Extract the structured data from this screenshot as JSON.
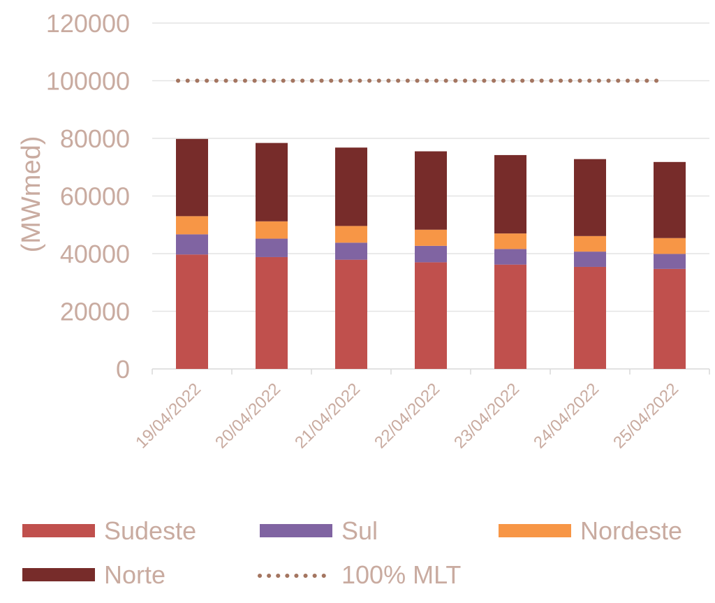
{
  "chart_data": {
    "type": "bar",
    "stacked": true,
    "categories": [
      "19/04/2022",
      "20/04/2022",
      "21/04/2022",
      "22/04/2022",
      "23/04/2022",
      "24/04/2022",
      "25/04/2022"
    ],
    "series": [
      {
        "name": "Sudeste",
        "color": "#c0504d",
        "values": [
          39700,
          38800,
          37900,
          37000,
          36200,
          35400,
          34700
        ]
      },
      {
        "name": "Sul",
        "color": "#8064a2",
        "values": [
          7000,
          6400,
          5900,
          5700,
          5400,
          5300,
          5200
        ]
      },
      {
        "name": "Nordeste",
        "color": "#f79646",
        "values": [
          6300,
          6000,
          5800,
          5600,
          5400,
          5400,
          5500
        ]
      },
      {
        "name": "Norte",
        "color": "#772c2a",
        "values": [
          26800,
          27200,
          27200,
          27200,
          27200,
          26700,
          26400
        ]
      }
    ],
    "reference_line": {
      "name": "100% MLT",
      "value": 100000,
      "color": "#a47560",
      "style": "dotted"
    },
    "ylabel": "(MWmed)",
    "ylim": [
      0,
      120000
    ],
    "yticks": [
      "0",
      "20000",
      "40000",
      "60000",
      "80000",
      "100000",
      "120000"
    ],
    "grid": true,
    "legend_position": "bottom",
    "text_color": "#c9aba0",
    "grid_color": "#e4e4e4"
  }
}
